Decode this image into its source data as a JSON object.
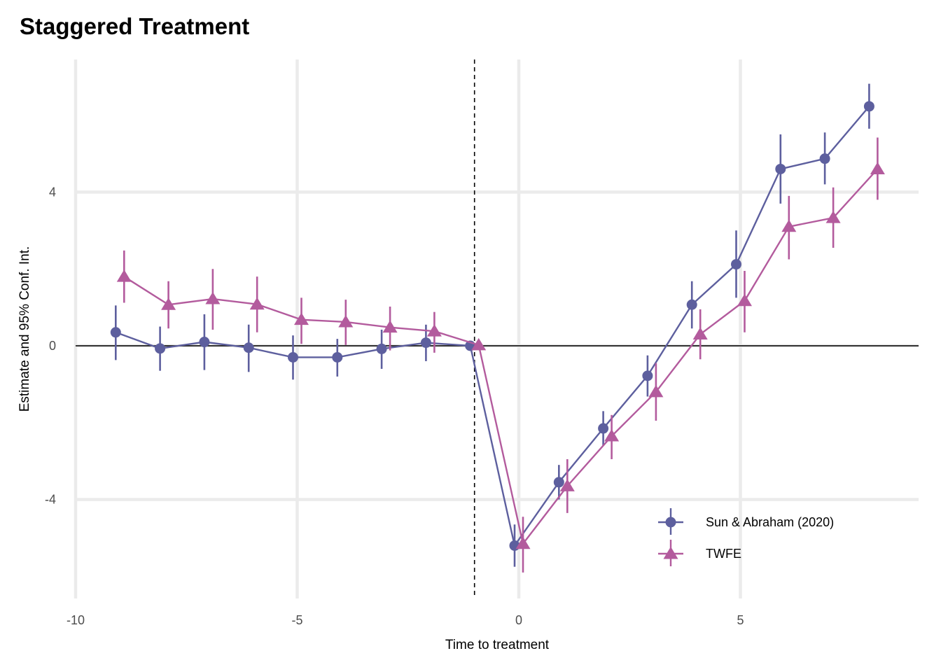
{
  "chart_data": {
    "type": "line",
    "title": "Staggered Treatment",
    "xlabel": "Time to treatment",
    "ylabel": "Estimate and 95% Conf. Int.",
    "xlim": [
      -10,
      9
    ],
    "ylim": [
      -6.5,
      7.5
    ],
    "xticks": [
      -10,
      -5,
      0,
      5
    ],
    "xtick_labels": [
      "-10",
      "-5",
      "0",
      "5"
    ],
    "yticks": [
      -4,
      0,
      4
    ],
    "ytick_labels": [
      "-4",
      "0",
      "4"
    ],
    "grid": true,
    "reference_hline": 0,
    "reference_vline": -1,
    "legend_position": "bottom-right",
    "series": [
      {
        "name": "Sun & Abraham (2020)",
        "color": "#5d5f9e",
        "marker": "circle",
        "x": [
          -9,
          -8,
          -7,
          -6,
          -5,
          -4,
          -3,
          -2,
          -1,
          0,
          1,
          2,
          3,
          4,
          5,
          6,
          7,
          8
        ],
        "y": [
          0.35,
          -0.07,
          0.1,
          -0.05,
          -0.3,
          -0.3,
          -0.08,
          0.08,
          0,
          -5.2,
          -3.55,
          -2.15,
          -0.78,
          1.07,
          2.12,
          4.6,
          4.87,
          6.23
        ],
        "ci_low": [
          -0.37,
          -0.65,
          -0.63,
          -0.68,
          -0.88,
          -0.8,
          -0.6,
          -0.4,
          0,
          -5.75,
          -4.0,
          -2.6,
          -1.32,
          0.45,
          1.25,
          3.7,
          4.2,
          5.65
        ],
        "ci_high": [
          1.05,
          0.5,
          0.82,
          0.55,
          0.27,
          0.18,
          0.42,
          0.55,
          0,
          -4.65,
          -3.1,
          -1.7,
          -0.25,
          1.68,
          3.0,
          5.5,
          5.55,
          6.82
        ]
      },
      {
        "name": "TWFE",
        "color": "#b35b9d",
        "marker": "triangle",
        "x": [
          -9,
          -8,
          -7,
          -6,
          -5,
          -4,
          -3,
          -2,
          -1,
          0,
          1,
          2,
          3,
          4,
          5,
          6,
          7,
          8
        ],
        "y": [
          1.8,
          1.07,
          1.22,
          1.08,
          0.68,
          0.62,
          0.48,
          0.38,
          0.02,
          -5.15,
          -3.65,
          -2.35,
          -1.2,
          0.3,
          1.17,
          3.1,
          3.33,
          4.6
        ],
        "ci_low": [
          1.12,
          0.45,
          0.42,
          0.35,
          0.05,
          0.02,
          -0.12,
          -0.18,
          0.02,
          -5.9,
          -4.35,
          -2.95,
          -1.95,
          -0.35,
          0.35,
          2.25,
          2.55,
          3.8
        ],
        "ci_high": [
          2.48,
          1.68,
          2.0,
          1.8,
          1.25,
          1.2,
          1.02,
          0.88,
          0.02,
          -4.45,
          -2.95,
          -1.8,
          -0.45,
          0.95,
          1.95,
          3.9,
          4.12,
          5.42
        ]
      }
    ]
  }
}
